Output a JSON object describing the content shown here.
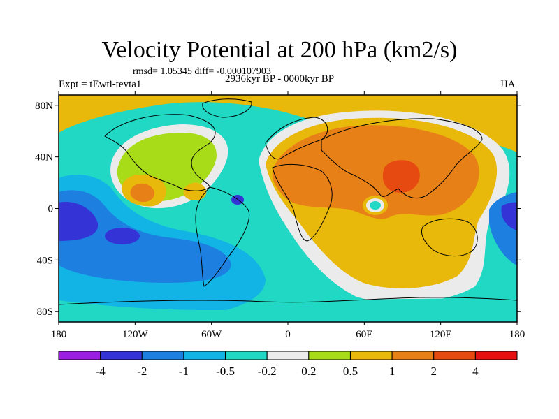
{
  "figure": {
    "title": "Velocity Potential at 200 hPa (km2/s)",
    "stats": "rmsd= 1.05345 diff= -0.000107903",
    "experiment": "Expt = tEwti-tevta1",
    "period": "2936kyr BP - 0000kyr BP",
    "season": "JJA"
  },
  "axes": {
    "lon_ticks": [
      "180",
      "120W",
      "60W",
      "0",
      "60E",
      "120E",
      "180"
    ],
    "lat_ticks": [
      "80N",
      "40N",
      "0",
      "40S",
      "80S"
    ],
    "lon_values": [
      -180,
      -120,
      -60,
      0,
      60,
      120,
      180
    ],
    "lat_values": [
      80,
      40,
      0,
      -40,
      -80
    ]
  },
  "colorbar": {
    "levels": [
      "-4",
      "-2",
      "-1",
      "-0.5",
      "-0.2",
      "0.2",
      "0.5",
      "1",
      "2",
      "4"
    ],
    "colors": [
      "#9b1fe3",
      "#3434d6",
      "#1d7fe0",
      "#12b4e6",
      "#20d8c4",
      "#ebebeb",
      "#a8dc18",
      "#e8b80a",
      "#e88018",
      "#e64a10",
      "#e61010"
    ]
  },
  "map_colors": {
    "ocean_base": "#20d8c4",
    "land_outline": "#000000"
  }
}
